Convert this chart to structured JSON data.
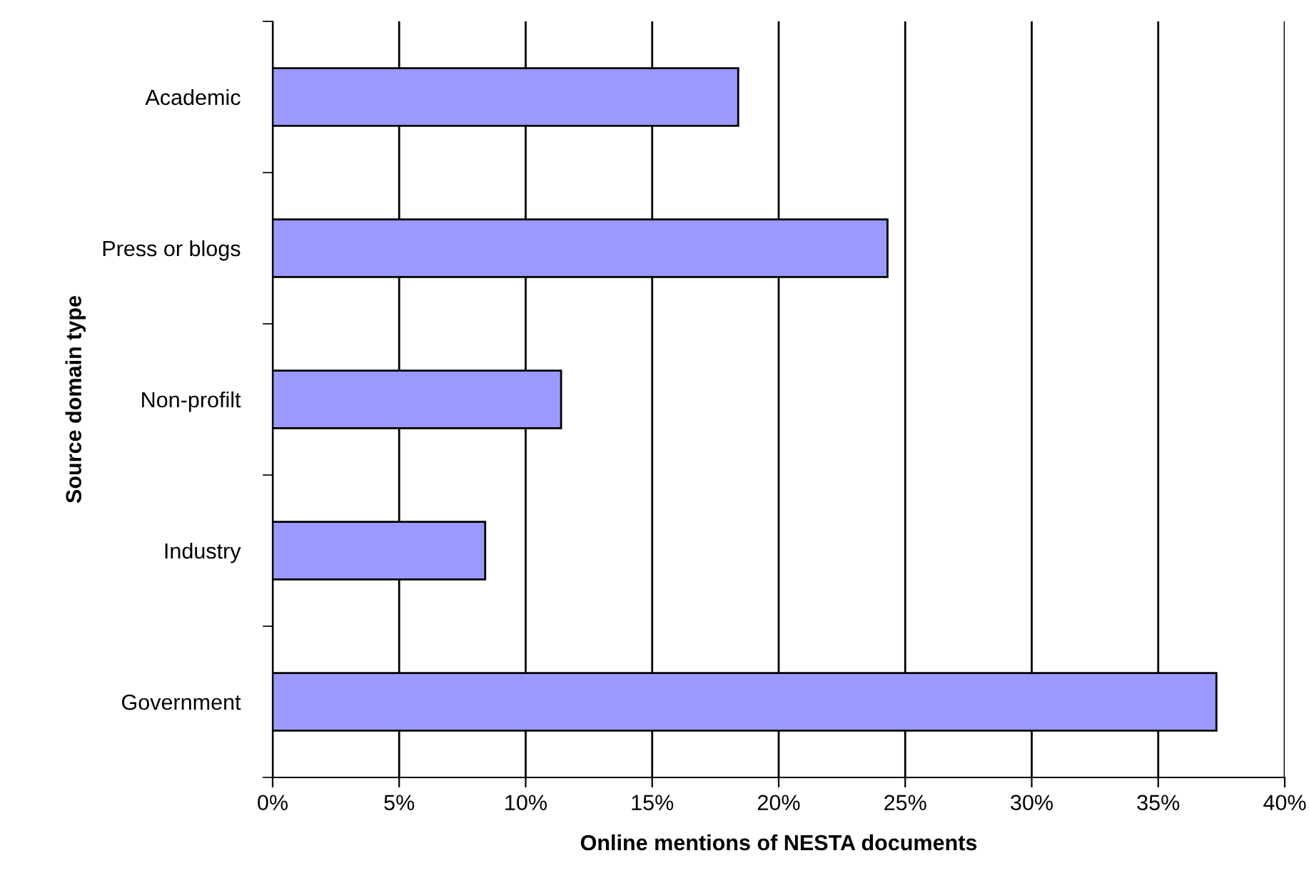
{
  "chart_data": {
    "type": "bar",
    "orientation": "horizontal",
    "categories": [
      "Academic",
      "Press or blogs",
      "Non-profilt",
      "Industry",
      "Government"
    ],
    "values": [
      18.4,
      24.3,
      11.4,
      8.4,
      37.3
    ],
    "color": "#9999ff",
    "xlim": [
      0,
      40
    ],
    "xticks": [
      {
        "value": 0,
        "label": "0%"
      },
      {
        "value": 5,
        "label": "5%"
      },
      {
        "value": 10,
        "label": "10%"
      },
      {
        "value": 15,
        "label": "15%"
      },
      {
        "value": 20,
        "label": "20%"
      },
      {
        "value": 25,
        "label": "25%"
      },
      {
        "value": 30,
        "label": "30%"
      },
      {
        "value": 35,
        "label": "35%"
      },
      {
        "value": 40,
        "label": "40%"
      }
    ],
    "xlabel": "Online mentions of NESTA documents",
    "ylabel": "Source domain type",
    "grid": "x"
  }
}
